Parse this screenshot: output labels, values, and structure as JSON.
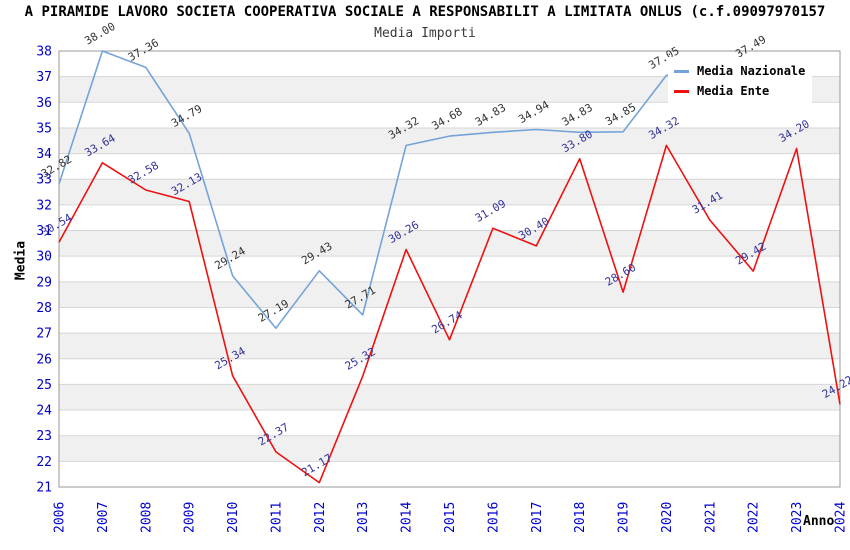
{
  "title": "A PIRAMIDE LAVORO SOCIETA COOPERATIVA SOCIALE A RESPONSABILIT A LIMITATA ONLUS (c.f.09097970157",
  "chart_data": {
    "type": "line",
    "title": "Media Importi",
    "xlabel": "Anno",
    "ylabel": "Media",
    "x": [
      "2006",
      "2007",
      "2008",
      "2009",
      "2010",
      "2011",
      "2012",
      "2013",
      "2014",
      "2015",
      "2016",
      "2017",
      "2018",
      "2019",
      "2020",
      "2021",
      "2022",
      "2023",
      "2024"
    ],
    "ylim": [
      21,
      38
    ],
    "ytick_step": 1,
    "grid": "horizontal-only",
    "alternating_bands": true,
    "legend_position": "top-right",
    "tick_label_color": "#0000cc",
    "band_color": "#f0f0f0",
    "gridline_color": "#d6d6d6",
    "border_color": "#999999",
    "series": [
      {
        "name": "Media Nazionale",
        "color": "#74a3d9",
        "label_color": "#333333",
        "values": [
          32.82,
          38.0,
          37.36,
          34.79,
          29.24,
          27.19,
          29.43,
          27.71,
          34.32,
          34.68,
          34.83,
          34.94,
          34.83,
          34.85,
          37.05,
          null,
          37.49,
          null,
          null
        ]
      },
      {
        "name": "Media Ente",
        "color": "#ee1111",
        "label_color": "#333399",
        "values": [
          30.54,
          33.64,
          32.58,
          32.13,
          25.34,
          22.37,
          21.17,
          25.32,
          30.26,
          26.74,
          31.09,
          30.4,
          33.8,
          28.6,
          34.32,
          31.41,
          29.42,
          34.2,
          24.22
        ]
      }
    ]
  }
}
